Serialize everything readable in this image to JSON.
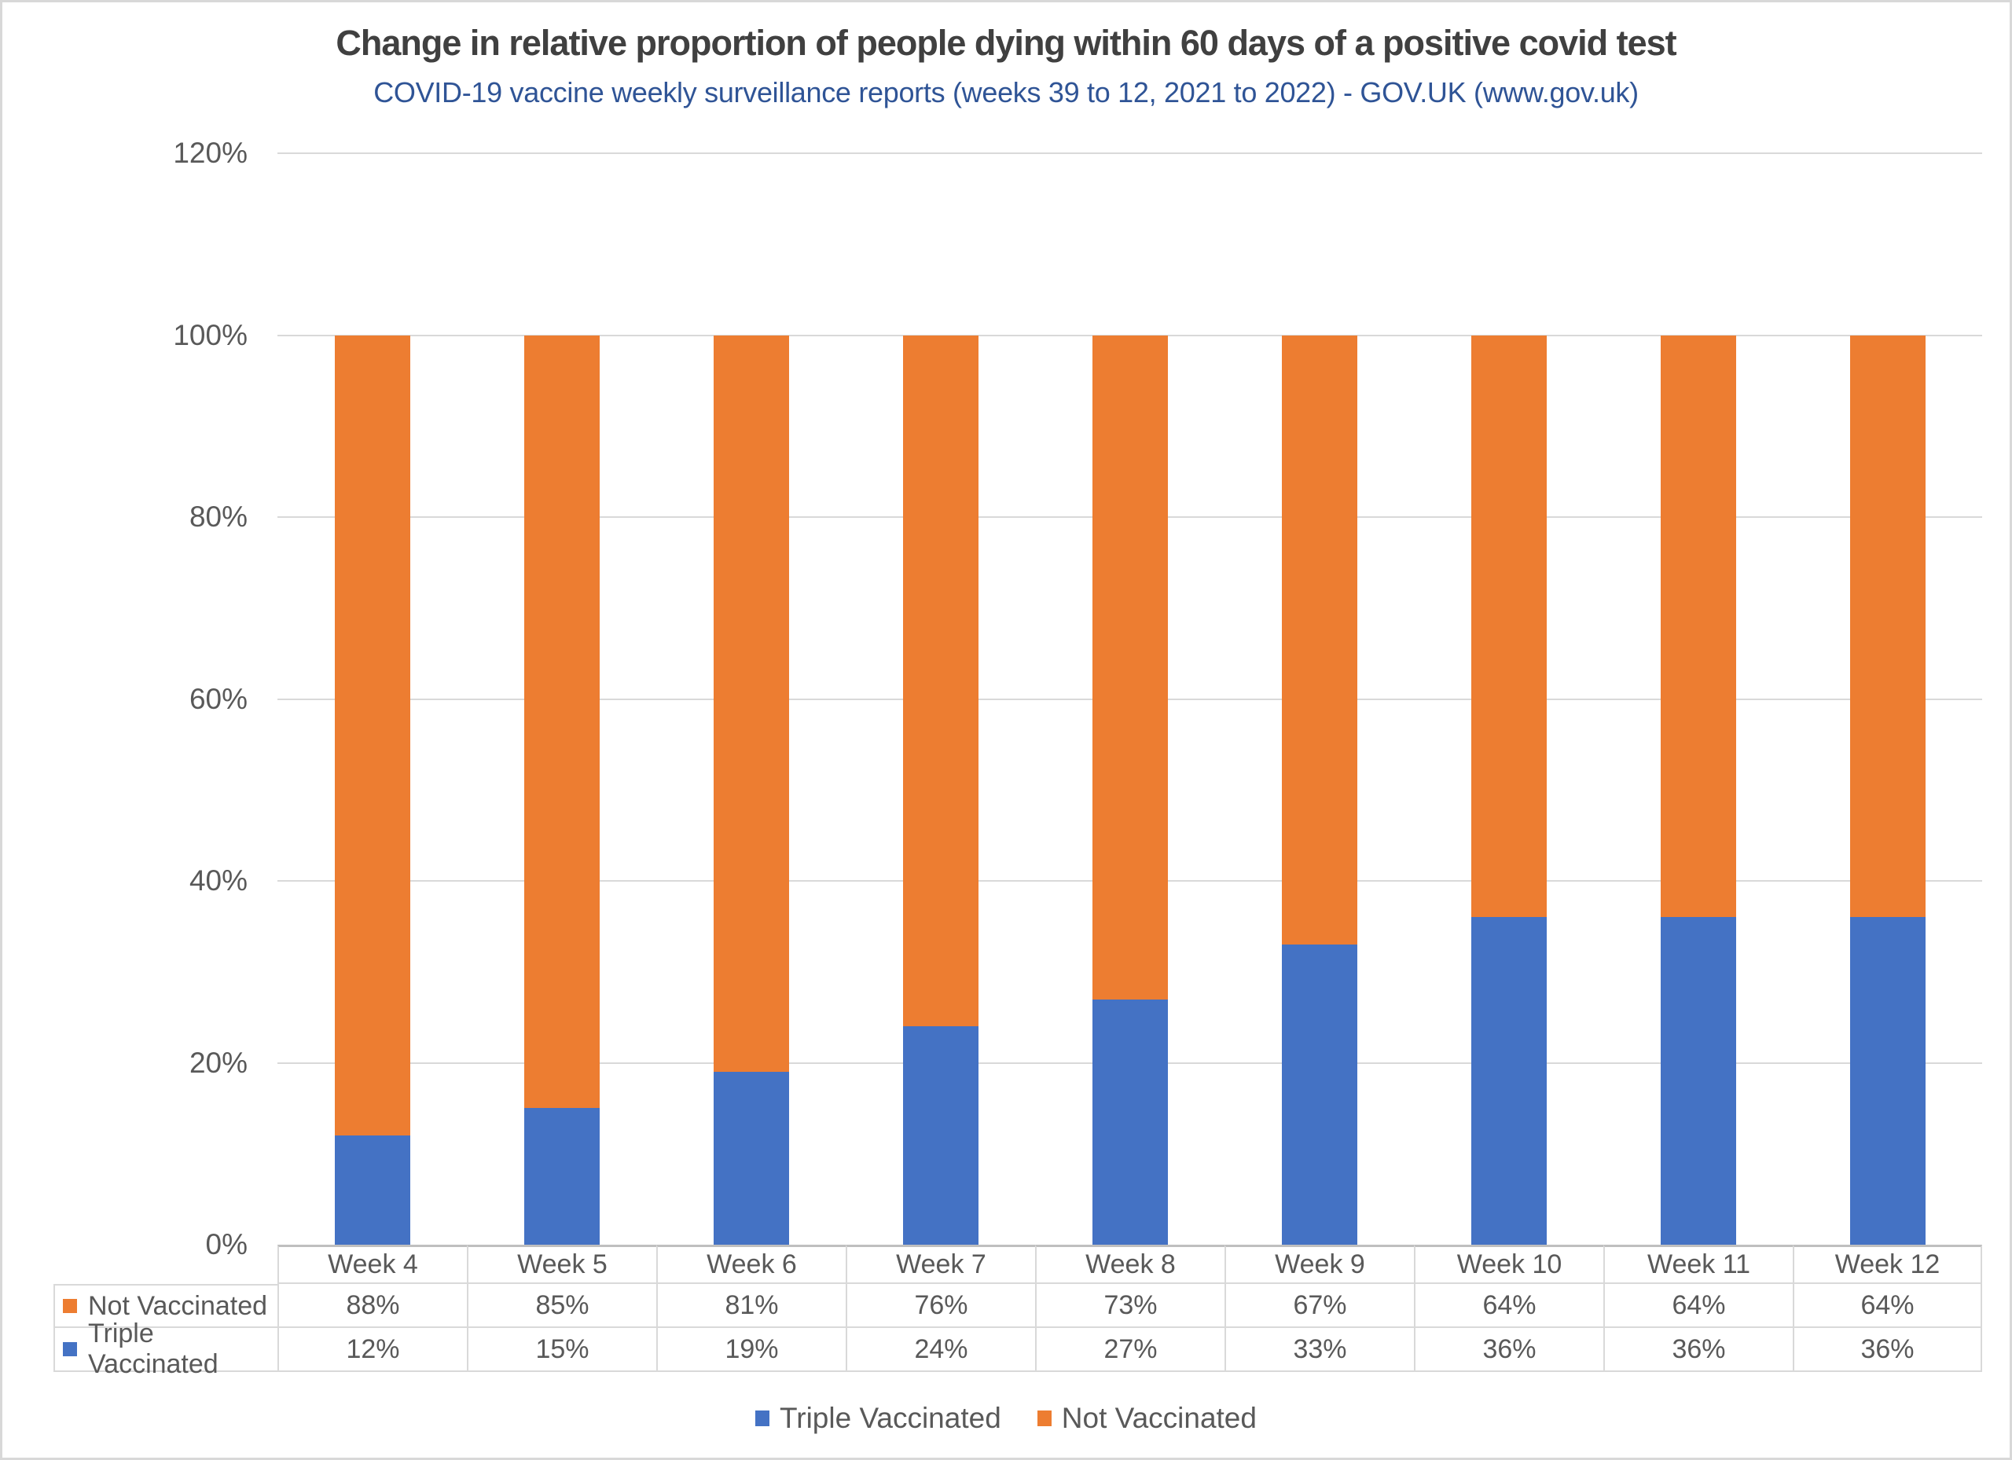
{
  "title": "Change in relative proportion of people dying within 60 days of a positive covid test",
  "subtitle": "COVID-19 vaccine weekly surveillance reports (weeks 39 to 12, 2021 to 2022) - GOV.UK (www.gov.uk)",
  "colors": {
    "triple_vaccinated": "#4472C4",
    "not_vaccinated": "#ED7D31",
    "title_text": "#404040",
    "subtitle_text": "#2F5496",
    "axis_text": "#595959",
    "gridline": "#D9D9D9",
    "table_border": "#D9D9D9",
    "axis_line": "#BFBFBF"
  },
  "chart_data": {
    "type": "bar",
    "stacked": true,
    "categories": [
      "Week 4",
      "Week 5",
      "Week 6",
      "Week 7",
      "Week 8",
      "Week 9",
      "Week 10",
      "Week 11",
      "Week 12"
    ],
    "series": [
      {
        "name": "Triple Vaccinated",
        "color": "#4472C4",
        "values": [
          12,
          15,
          19,
          24,
          27,
          33,
          36,
          36,
          36
        ]
      },
      {
        "name": "Not Vaccinated",
        "color": "#ED7D31",
        "values": [
          88,
          85,
          81,
          76,
          73,
          67,
          64,
          64,
          64
        ]
      }
    ],
    "ylabel": "",
    "xlabel": "",
    "ylim": [
      0,
      120
    ],
    "y_axis": {
      "min": 0,
      "max": 120,
      "step": 20,
      "tick_labels": [
        "0%",
        "20%",
        "40%",
        "60%",
        "80%",
        "100%",
        "120%"
      ]
    },
    "grid": true,
    "legend_position": "bottom",
    "data_table": {
      "rows": [
        {
          "label": "Not Vaccinated",
          "swatch_color": "#ED7D31",
          "values": [
            "88%",
            "85%",
            "81%",
            "76%",
            "73%",
            "67%",
            "64%",
            "64%",
            "64%"
          ]
        },
        {
          "label": "Triple Vaccinated",
          "swatch_color": "#4472C4",
          "values": [
            "12%",
            "15%",
            "19%",
            "24%",
            "27%",
            "33%",
            "36%",
            "36%",
            "36%"
          ]
        }
      ]
    }
  },
  "legend": {
    "items": [
      {
        "label": "Triple Vaccinated",
        "color": "#4472C4"
      },
      {
        "label": "Not Vaccinated",
        "color": "#ED7D31"
      }
    ]
  }
}
